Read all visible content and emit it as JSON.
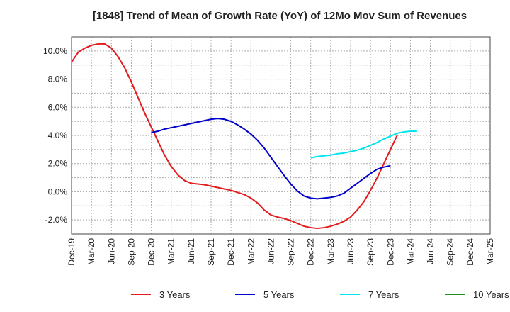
{
  "chart_data": {
    "type": "line",
    "title": "[1848]  Trend of Mean of Growth Rate (YoY) of 12Mo Mov Sum of Revenues",
    "xlabel": "",
    "ylabel": "",
    "x_tick_labels": [
      "Dec-19",
      "Mar-20",
      "Jun-20",
      "Sep-20",
      "Dec-20",
      "Mar-21",
      "Jun-21",
      "Sep-21",
      "Dec-21",
      "Mar-22",
      "Jun-22",
      "Sep-22",
      "Dec-22",
      "Mar-23",
      "Jun-23",
      "Sep-23",
      "Dec-23",
      "Mar-24",
      "Jun-24",
      "Sep-24",
      "Dec-24",
      "Mar-25"
    ],
    "y_tick_values": [
      -2,
      0,
      2,
      4,
      6,
      8,
      10
    ],
    "y_tick_labels": [
      "-2.0%",
      "0.0%",
      "2.0%",
      "4.0%",
      "6.0%",
      "8.0%",
      "10.0%"
    ],
    "ylim": [
      -3.0,
      11.0
    ],
    "grid": true,
    "legend_position": "bottom",
    "series": [
      {
        "name": "3 Years",
        "color": "#e41a1c",
        "start_index": 0,
        "values": [
          9.2,
          9.9,
          10.2,
          10.4,
          10.5,
          10.5,
          10.2,
          9.6,
          8.8,
          7.8,
          6.7,
          5.6,
          4.6,
          3.6,
          2.6,
          1.8,
          1.2,
          0.8,
          0.6,
          0.55,
          0.5,
          0.4,
          0.3,
          0.2,
          0.1,
          -0.05,
          -0.2,
          -0.45,
          -0.8,
          -1.3,
          -1.65,
          -1.8,
          -1.9,
          -2.05,
          -2.25,
          -2.45,
          -2.55,
          -2.6,
          -2.55,
          -2.45,
          -2.3,
          -2.1,
          -1.8,
          -1.3,
          -0.7,
          0.1,
          1.0,
          2.0,
          3.0,
          4.0
        ]
      },
      {
        "name": "5 Years",
        "color": "#0000cc",
        "start_index": 12,
        "values": [
          4.2,
          4.3,
          4.45,
          4.55,
          4.65,
          4.75,
          4.85,
          4.95,
          5.05,
          5.15,
          5.2,
          5.15,
          5.0,
          4.75,
          4.45,
          4.1,
          3.65,
          3.1,
          2.45,
          1.8,
          1.15,
          0.55,
          0.05,
          -0.3,
          -0.45,
          -0.5,
          -0.45,
          -0.4,
          -0.3,
          -0.1,
          0.25,
          0.6,
          0.95,
          1.3,
          1.6,
          1.75,
          1.85
        ]
      },
      {
        "name": "7 Years",
        "color": "#00e5ee",
        "start_index": 36,
        "values": [
          2.4,
          2.5,
          2.55,
          2.6,
          2.7,
          2.75,
          2.85,
          2.95,
          3.1,
          3.3,
          3.5,
          3.75,
          3.95,
          4.15,
          4.25,
          4.3,
          4.3
        ]
      },
      {
        "name": "10 Years",
        "color": "#228b22",
        "start_index": 0,
        "values": []
      }
    ]
  }
}
